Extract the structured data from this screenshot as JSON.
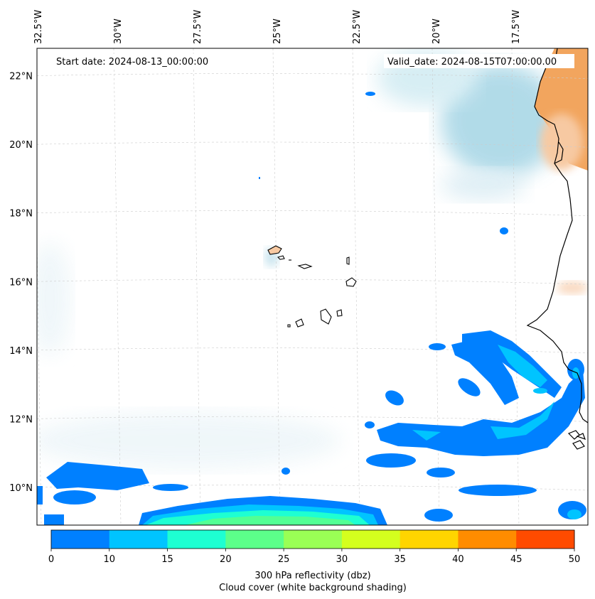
{
  "map": {
    "start_label": "Start date: 2024-08-13_00:00:00",
    "valid_label": "Valid_date: 2024-08-15T07:00:00.00",
    "lon_labels": [
      "32.5°W",
      "30°W",
      "27.5°W",
      "25°W",
      "22.5°W",
      "20°W",
      "17.5°W"
    ],
    "lat_labels": [
      "22°N",
      "20°N",
      "18°N",
      "16°N",
      "14°N",
      "12°N",
      "10°N"
    ],
    "lon_values": [
      -32.5,
      -30,
      -27.5,
      -25,
      -22.5,
      -20,
      -17.5
    ],
    "lat_values": [
      22,
      20,
      18,
      16,
      14,
      12,
      10
    ],
    "lon_range": [
      -32.5,
      -15.2
    ],
    "lat_range": [
      8.9,
      22.8
    ],
    "gridlines": true,
    "colors": {
      "land_shading": "#f2a55e",
      "cloud_shading": "#a9d7e6",
      "coastline": "#000000",
      "grid": "#cccccc"
    }
  },
  "colorbar": {
    "ticks": [
      "0",
      "10",
      "15",
      "20",
      "25",
      "30",
      "35",
      "40",
      "45",
      "50"
    ],
    "colors": [
      "#0080ff",
      "#00c4ff",
      "#1effd2",
      "#5cff8a",
      "#9aff55",
      "#d4ff1e",
      "#ffd500",
      "#ff8c00",
      "#ff4b00"
    ],
    "label_line1": "300 hPa reflectivity (dbz)",
    "label_line2": "Cloud cover (white background shading)"
  }
}
